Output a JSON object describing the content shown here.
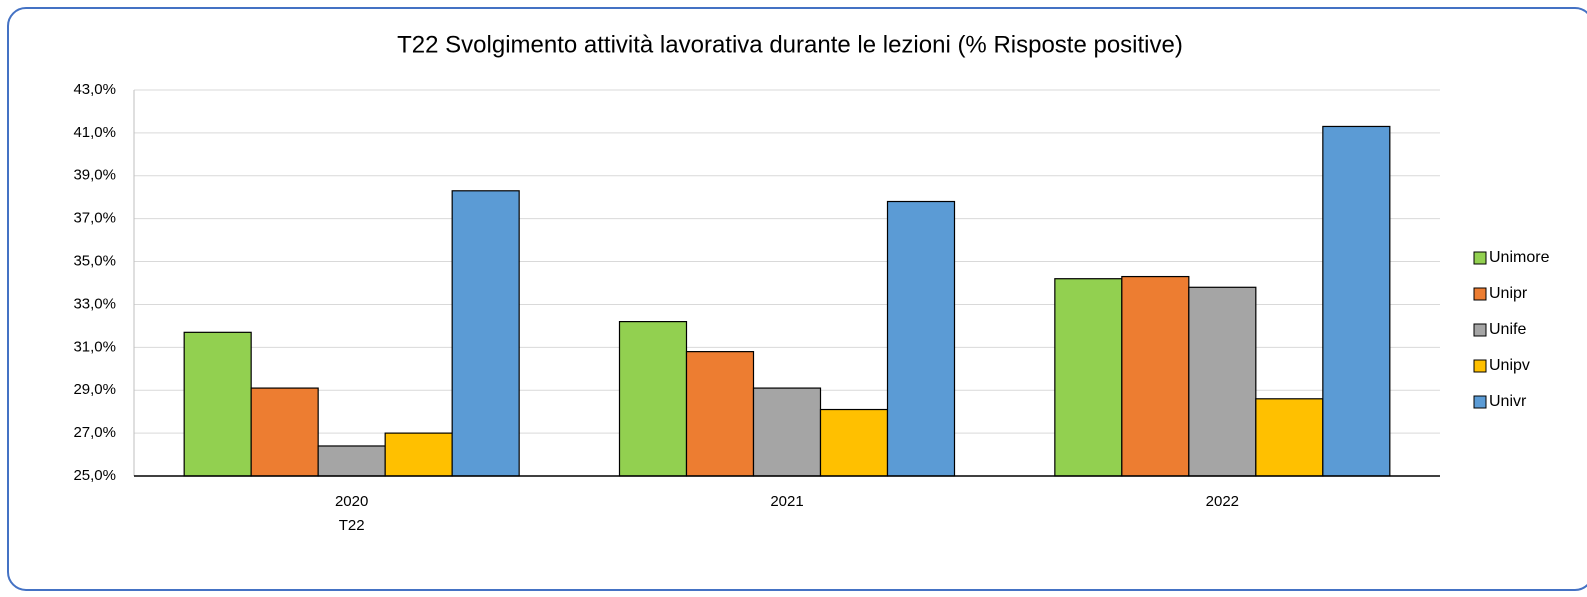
{
  "chart_data": {
    "type": "bar",
    "title": "T22 Svolgimento attività lavorativa  durante le lezioni (% Risposte positive)",
    "categories": [
      "2020",
      "2021",
      "2022"
    ],
    "x_group_label": "T22",
    "series": [
      {
        "name": "Unimore",
        "color": "#92d050",
        "values": [
          31.7,
          32.2,
          34.2
        ]
      },
      {
        "name": "Unipr",
        "color": "#ed7d31",
        "values": [
          29.1,
          30.8,
          34.3
        ]
      },
      {
        "name": "Unife",
        "color": "#a5a5a5",
        "values": [
          26.4,
          29.1,
          33.8
        ]
      },
      {
        "name": "Unipv",
        "color": "#ffc000",
        "values": [
          27.0,
          28.1,
          28.6
        ]
      },
      {
        "name": "Univr",
        "color": "#5b9bd5",
        "values": [
          38.3,
          37.8,
          41.3
        ]
      }
    ],
    "ylim": [
      25,
      43
    ],
    "yticks": [
      {
        "value": 25,
        "label": "25,0%"
      },
      {
        "value": 27,
        "label": "27,0%"
      },
      {
        "value": 29,
        "label": "29,0%"
      },
      {
        "value": 31,
        "label": "31,0%"
      },
      {
        "value": 33,
        "label": "33,0%"
      },
      {
        "value": 35,
        "label": "35,0%"
      },
      {
        "value": 37,
        "label": "37,0%"
      },
      {
        "value": 39,
        "label": "39,0%"
      },
      {
        "value": 41,
        "label": "41,0%"
      },
      {
        "value": 43,
        "label": "43,0%"
      }
    ],
    "grid": true,
    "legend": "right"
  }
}
